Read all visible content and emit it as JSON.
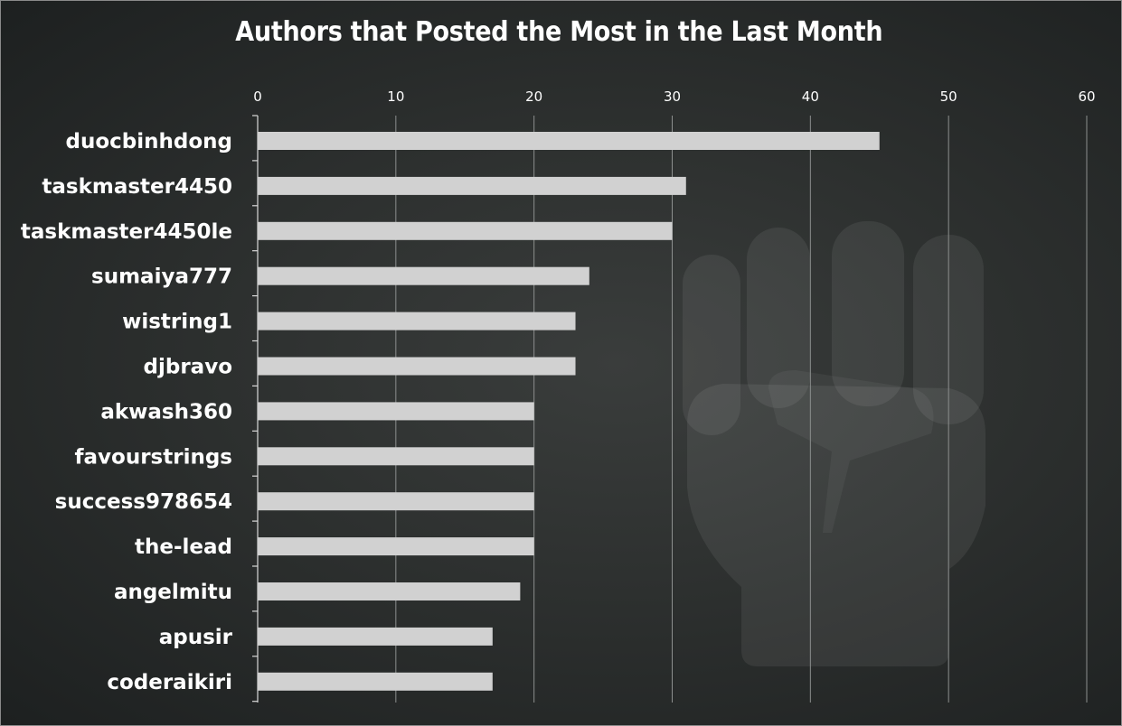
{
  "chart_data": {
    "type": "bar",
    "orientation": "horizontal",
    "title": "Authors that Posted the Most in the Last Month",
    "xlabel": "",
    "ylabel": "",
    "xlim": [
      0,
      60
    ],
    "x_ticks": [
      "0",
      "10",
      "20",
      "30",
      "40",
      "50",
      "60"
    ],
    "x_axis_position": "top",
    "grid": true,
    "categories": [
      "duocbinhdong",
      "taskmaster4450",
      "taskmaster4450le",
      "sumaiya777",
      "wistring1",
      "djbravo",
      "akwash360",
      "favourstrings",
      "success978654",
      "the-lead",
      "angelmitu",
      "apusir",
      "coderaikiri"
    ],
    "values": [
      45,
      31,
      30,
      24,
      23,
      23,
      20,
      20,
      20,
      20,
      19,
      17,
      17
    ],
    "colors": {
      "bar": "#d1d1d1",
      "text": "#ffffff",
      "grid": "#8c8f8e",
      "background": "#2d302f"
    }
  }
}
